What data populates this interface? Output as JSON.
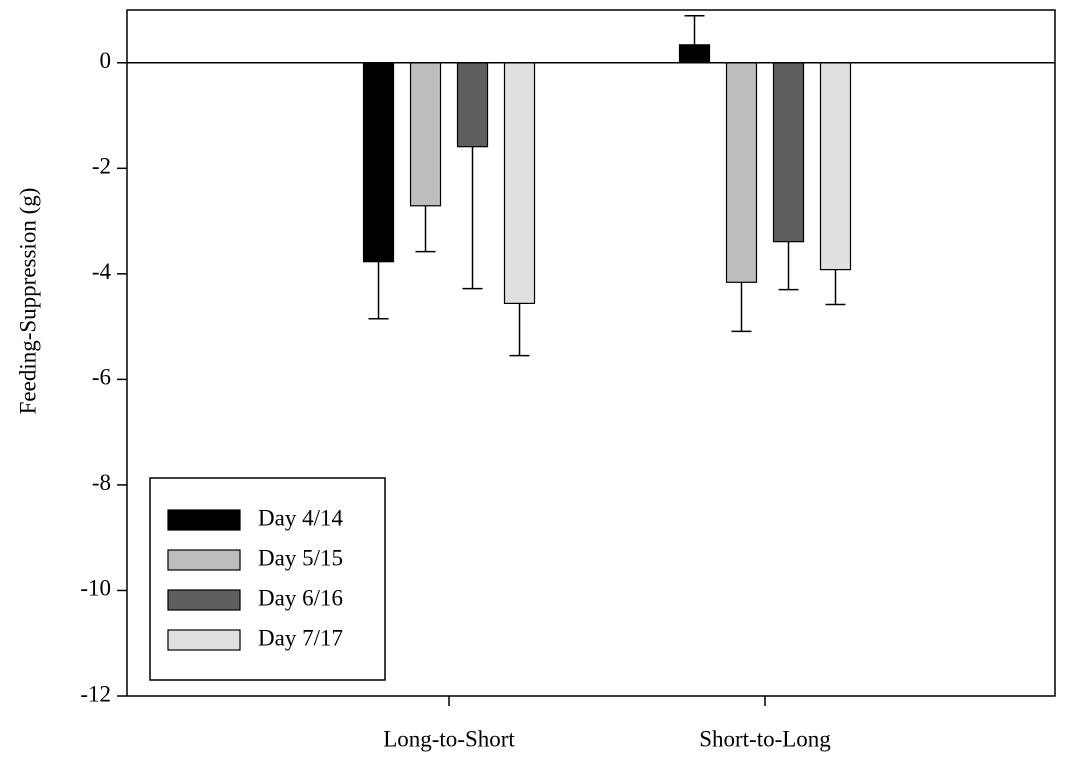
{
  "chart_data": {
    "type": "bar",
    "y_label": "Feeding-Suppression (g)",
    "categories": [
      "Long-to-Short",
      "Short-to-Long"
    ],
    "series": [
      {
        "name": "Day 4/14",
        "color": "#000000",
        "values": [
          -3.77,
          0.34
        ],
        "errors": [
          1.08,
          0.55
        ]
      },
      {
        "name": "Day 5/15",
        "color": "#bdbdbd",
        "values": [
          -2.71,
          -4.16
        ],
        "errors": [
          0.87,
          0.93
        ]
      },
      {
        "name": "Day 6/16",
        "color": "#5f5f5f",
        "values": [
          -1.59,
          -3.39
        ],
        "errors": [
          2.69,
          0.91
        ]
      },
      {
        "name": "Day 7/17",
        "color": "#e0e0e0",
        "values": [
          -4.56,
          -3.92
        ],
        "errors": [
          0.99,
          0.66
        ]
      }
    ],
    "ylim": [
      -12,
      1
    ],
    "yticks": [
      -12,
      -10,
      -8,
      -6,
      -4,
      -2,
      0
    ],
    "legend": "lower left"
  }
}
